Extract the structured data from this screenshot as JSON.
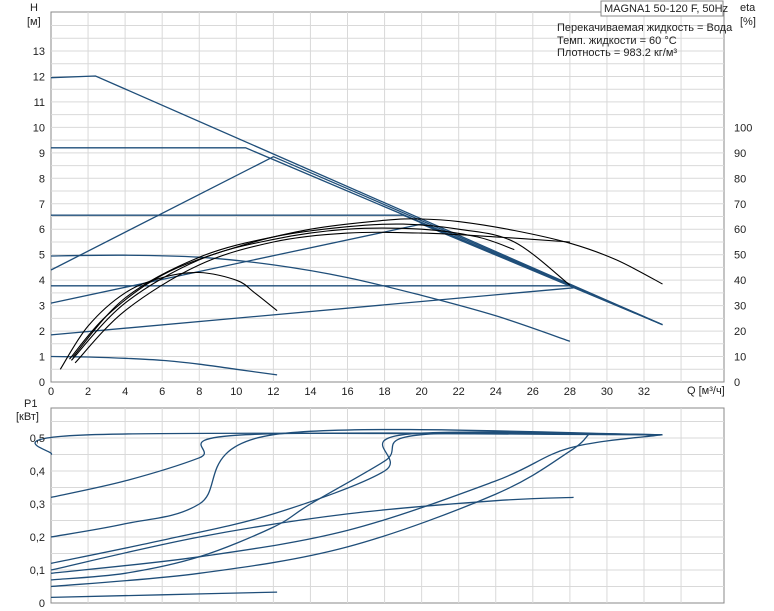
{
  "chart_data": [
    {
      "type": "line",
      "title": "MAGNA1 50-120 F, 50Hz",
      "ylabel": "H",
      "yunit": "[м]",
      "y2label": "eta",
      "y2unit": "[%]",
      "xlabel": "Q [м³/ч]",
      "xlim": [
        0,
        36
      ],
      "ylim": [
        0,
        14.5
      ],
      "y2lim": [
        0,
        145
      ],
      "xticks": [
        0,
        2,
        4,
        6,
        8,
        10,
        12,
        14,
        16,
        18,
        20,
        22,
        24,
        26,
        28,
        30,
        32
      ],
      "yticks": [
        0,
        1,
        2,
        3,
        4,
        5,
        6,
        7,
        8,
        9,
        10,
        11,
        12,
        13
      ],
      "y2ticks": [
        0,
        10,
        20,
        30,
        40,
        50,
        60,
        70,
        80,
        90,
        100
      ],
      "grid": true,
      "info": [
        "Перекачиваемая жидкость = Вода",
        "Темп. жидкости = 60 °C",
        "Плотность = 983.2 кг/м³"
      ],
      "series": [
        {
          "color": "#1f4e79",
          "kind": "head",
          "x": [
            0,
            2.4,
            33
          ],
          "y": [
            11.95,
            12.02,
            2.25
          ]
        },
        {
          "color": "#1f4e79",
          "kind": "head",
          "x": [
            0,
            10.5,
            33
          ],
          "y": [
            9.2,
            9.2,
            2.25
          ]
        },
        {
          "color": "#1f4e79",
          "kind": "head",
          "x": [
            0,
            12,
            33
          ],
          "y": [
            4.4,
            8.85,
            2.25
          ]
        },
        {
          "color": "#1f4e79",
          "kind": "head",
          "x": [
            0,
            19,
            33
          ],
          "y": [
            6.55,
            6.55,
            2.25
          ]
        },
        {
          "color": "#1f4e79",
          "kind": "head",
          "x": [
            0,
            20,
            33
          ],
          "y": [
            3.1,
            6.2,
            2.25
          ]
        },
        {
          "color": "#1f4e79",
          "kind": "head",
          "x": [
            0,
            28.2
          ],
          "y": [
            3.78,
            3.78
          ]
        },
        {
          "color": "#1f4e79",
          "kind": "head",
          "x": [
            0,
            28.2
          ],
          "y": [
            1.85,
            3.7
          ]
        },
        {
          "color": "#1f4e79",
          "kind": "head",
          "x": [
            0,
            4,
            8,
            12,
            16,
            20,
            24,
            28
          ],
          "y": [
            4.95,
            4.98,
            4.9,
            4.6,
            4.1,
            3.4,
            2.6,
            1.6
          ]
        },
        {
          "color": "#1f4e79",
          "kind": "head",
          "x": [
            0,
            2,
            4,
            6,
            8,
            10,
            12.2
          ],
          "y": [
            1.0,
            0.98,
            0.93,
            0.85,
            0.7,
            0.5,
            0.28
          ]
        },
        {
          "color": "#000000",
          "kind": "eta",
          "x": [
            0.5,
            2,
            4,
            6,
            8,
            10,
            11,
            12.2
          ],
          "y": [
            0.5,
            2.2,
            3.5,
            4.1,
            4.3,
            4.0,
            3.5,
            2.8
          ]
        },
        {
          "color": "#000000",
          "kind": "eta",
          "x": [
            1,
            3,
            6,
            10,
            14,
            18,
            20,
            22,
            25,
            28,
            30.5,
            33
          ],
          "y": [
            0.9,
            2.6,
            4.2,
            5.3,
            6.0,
            6.35,
            6.4,
            6.3,
            5.95,
            5.45,
            4.8,
            3.85
          ]
        },
        {
          "color": "#000000",
          "kind": "eta",
          "x": [
            1.2,
            4,
            8,
            12,
            16,
            19,
            22,
            25,
            28
          ],
          "y": [
            1.0,
            3.3,
            4.9,
            5.7,
            6.1,
            6.2,
            6.0,
            5.5,
            3.8
          ]
        },
        {
          "color": "#000000",
          "kind": "eta",
          "x": [
            1.3,
            4,
            8,
            12,
            16,
            20,
            24,
            28
          ],
          "y": [
            0.75,
            2.8,
            4.6,
            5.5,
            5.85,
            5.85,
            5.7,
            5.5
          ]
        },
        {
          "color": "#000000",
          "kind": "eta",
          "x": [
            1.1,
            4,
            8,
            12,
            16,
            20,
            23,
            25
          ],
          "y": [
            0.85,
            3.1,
            4.8,
            5.6,
            6.0,
            6.0,
            5.7,
            5.2
          ]
        }
      ]
    },
    {
      "type": "line",
      "ylabel": "P1",
      "yunit": "[кВт]",
      "xlim": [
        0,
        36
      ],
      "ylim": [
        0,
        0.55
      ],
      "yticks": [
        0,
        0.1,
        0.2,
        0.3,
        0.4,
        0.5
      ],
      "ytick_labels": [
        "0",
        "0,1",
        "0,2",
        "0,3",
        "0,4",
        "0,5"
      ],
      "grid": true,
      "series": [
        {
          "color": "#1f4e79",
          "x": [
            0,
            2.2,
            33
          ],
          "y": [
            0.45,
            0.51,
            0.51
          ]
        },
        {
          "color": "#1f4e79",
          "x": [
            0,
            4,
            8,
            10.5,
            33
          ],
          "y": [
            0.32,
            0.37,
            0.44,
            0.51,
            0.51
          ]
        },
        {
          "color": "#1f4e79",
          "x": [
            0,
            4,
            8,
            12,
            33
          ],
          "y": [
            0.2,
            0.24,
            0.3,
            0.51,
            0.51
          ]
        },
        {
          "color": "#1f4e79",
          "x": [
            0,
            6,
            12,
            18,
            19,
            33
          ],
          "y": [
            0.12,
            0.19,
            0.27,
            0.4,
            0.51,
            0.51
          ]
        },
        {
          "color": "#1f4e79",
          "x": [
            0,
            4,
            8,
            12,
            14,
            18,
            20,
            33
          ],
          "y": [
            0.07,
            0.09,
            0.14,
            0.23,
            0.3,
            0.43,
            0.51,
            0.51
          ]
        },
        {
          "color": "#1f4e79",
          "x": [
            0,
            8,
            16,
            24,
            28,
            33
          ],
          "y": [
            0.09,
            0.14,
            0.22,
            0.37,
            0.47,
            0.51
          ]
        },
        {
          "color": "#1f4e79",
          "x": [
            0,
            8,
            16,
            24,
            28,
            29
          ],
          "y": [
            0.05,
            0.09,
            0.17,
            0.33,
            0.46,
            0.51
          ]
        },
        {
          "color": "#1f4e79",
          "x": [
            0,
            8,
            16,
            24,
            28.2
          ],
          "y": [
            0.1,
            0.2,
            0.27,
            0.31,
            0.32
          ]
        },
        {
          "color": "#1f4e79",
          "x": [
            0,
            6,
            12.2
          ],
          "y": [
            0.017,
            0.025,
            0.033
          ]
        }
      ]
    }
  ]
}
